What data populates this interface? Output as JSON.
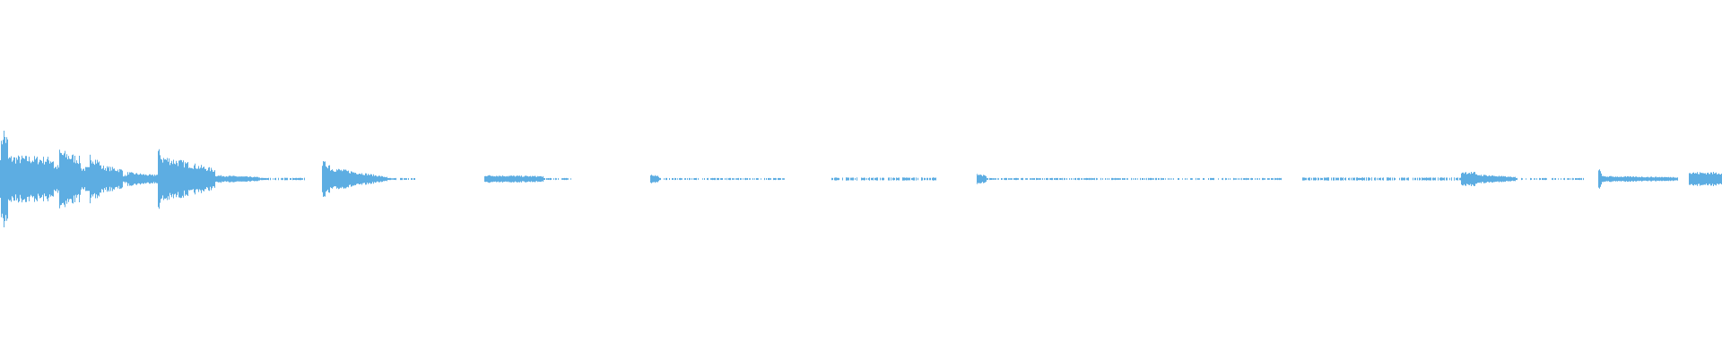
{
  "waveform": {
    "color": "#5dade2",
    "background": "#ffffff"
  }
}
